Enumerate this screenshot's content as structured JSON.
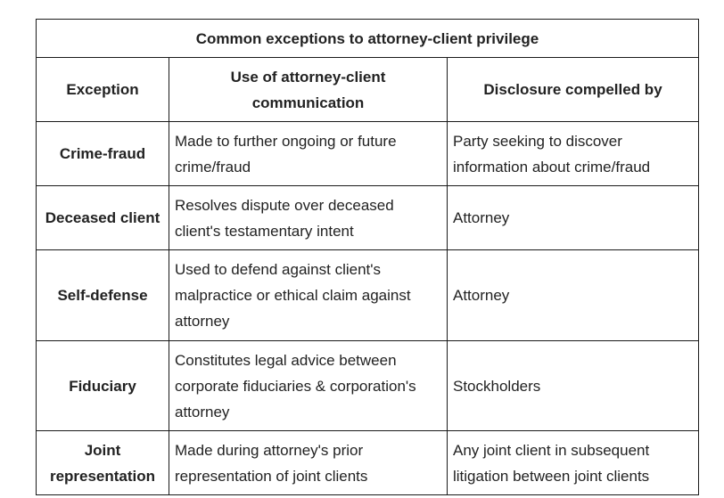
{
  "table": {
    "title": "Common exceptions to attorney-client privilege",
    "headers": [
      "Exception",
      "Use of attorney-client communication",
      "Disclosure compelled by"
    ],
    "rows": [
      {
        "exception": "Crime-fraud",
        "use": "Made to further ongoing or future crime/fraud",
        "compelled_by": "Party seeking to discover information about crime/fraud"
      },
      {
        "exception": "Deceased client",
        "use": "Resolves dispute over deceased client's testamentary intent",
        "compelled_by": "Attorney"
      },
      {
        "exception": "Self-defense",
        "use": "Used to defend against client's malpractice or ethical claim against attorney",
        "compelled_by": "Attorney"
      },
      {
        "exception": "Fiduciary",
        "use": "Constitutes legal advice between corporate fiduciaries & corporation's attorney",
        "compelled_by": "Stockholders"
      },
      {
        "exception": "Joint representation",
        "use": "Made during attorney's prior representation of joint clients",
        "compelled_by": "Any joint client in subsequent litigation between joint clients"
      }
    ]
  }
}
